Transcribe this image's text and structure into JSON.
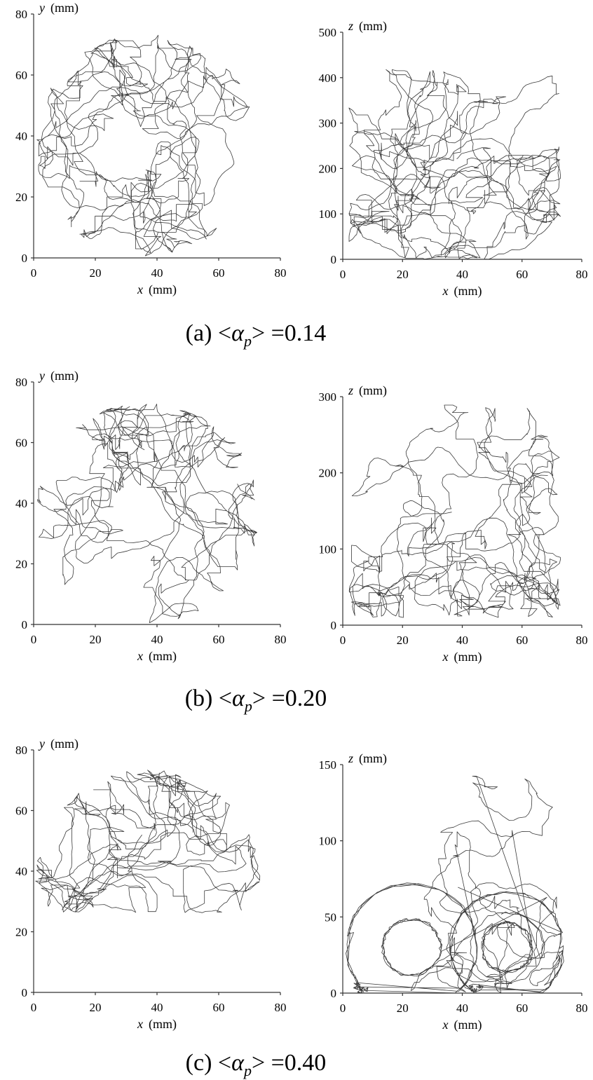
{
  "chart_data": [
    {
      "id": "a-xy",
      "type": "line",
      "xlabel": "x",
      "xunit": "(mm)",
      "ylabel": "y",
      "yunit": "(mm)",
      "xlim": [
        0,
        80
      ],
      "ylim": [
        0,
        80
      ],
      "xticks": [
        0,
        20,
        40,
        60,
        80
      ],
      "yticks": [
        0,
        20,
        40,
        60,
        80
      ],
      "trajectory": {
        "shape": "disc",
        "center": [
          36.5,
          37
        ],
        "radius": 36.5,
        "hole": [
          30,
          35,
          9
        ],
        "steps": 1300,
        "seed": 11
      }
    },
    {
      "id": "a-xz",
      "type": "line",
      "xlabel": "x",
      "xunit": "(mm)",
      "ylabel": "z",
      "yunit": "(mm)",
      "xlim": [
        0,
        80
      ],
      "ylim": [
        0,
        500
      ],
      "xticks": [
        0,
        20,
        40,
        60,
        80
      ],
      "yticks": [
        0,
        100,
        200,
        300,
        400,
        500
      ],
      "trajectory": {
        "shape": "rect",
        "x_range": [
          2,
          73
        ],
        "z_range": [
          0,
          420
        ],
        "steps": 1500,
        "seed": 12
      }
    },
    {
      "id": "b-xy",
      "type": "line",
      "xlabel": "x",
      "xunit": "(mm)",
      "ylabel": "y",
      "yunit": "(mm)",
      "xlim": [
        0,
        80
      ],
      "ylim": [
        0,
        80
      ],
      "xticks": [
        0,
        20,
        40,
        60,
        80
      ],
      "yticks": [
        0,
        20,
        40,
        60,
        80
      ],
      "trajectory": {
        "shape": "disc",
        "center": [
          37,
          37
        ],
        "radius": 36.5,
        "hole": [
          33,
          38,
          8
        ],
        "steps": 1200,
        "seed": 21
      }
    },
    {
      "id": "b-xz",
      "type": "line",
      "xlabel": "x",
      "xunit": "(mm)",
      "ylabel": "z",
      "yunit": "(mm)",
      "xlim": [
        0,
        80
      ],
      "ylim": [
        0,
        300
      ],
      "xticks": [
        0,
        20,
        40,
        60,
        80
      ],
      "yticks": [
        0,
        100,
        200,
        300
      ],
      "trajectory": {
        "shape": "rect",
        "x_range": [
          2,
          73
        ],
        "z_range": [
          10,
          290
        ],
        "steps": 1300,
        "seed": 22
      }
    },
    {
      "id": "c-xy",
      "type": "line",
      "xlabel": "x",
      "xunit": "(mm)",
      "ylabel": "y",
      "yunit": "(mm)",
      "xlim": [
        0,
        80
      ],
      "ylim": [
        0,
        80
      ],
      "xticks": [
        0,
        20,
        40,
        60,
        80
      ],
      "yticks": [
        0,
        20,
        40,
        60,
        80
      ],
      "trajectory": {
        "shape": "upper-disc",
        "center": [
          37,
          37
        ],
        "radius": 36.5,
        "y_min": 26,
        "stem": [
          22,
          32
        ],
        "steps": 1100,
        "seed": 31
      }
    },
    {
      "id": "c-xz",
      "type": "line",
      "xlabel": "x",
      "xunit": "(mm)",
      "ylabel": "z",
      "yunit": "(mm)",
      "xlim": [
        0,
        80
      ],
      "ylim": [
        0,
        150
      ],
      "xticks": [
        0,
        20,
        40,
        60,
        80
      ],
      "yticks": [
        0,
        50,
        100,
        150
      ],
      "trajectory": {
        "shape": "loops",
        "x_range": [
          1,
          74
        ],
        "z_range": [
          0,
          143
        ],
        "loop_centers": [
          [
            23,
            30
          ],
          [
            55,
            30
          ]
        ],
        "steps": 1100,
        "seed": 32
      }
    }
  ],
  "captions": [
    {
      "prefix": "(a) <",
      "var": "α",
      "sub": "p",
      "suffix": "> =0.14"
    },
    {
      "prefix": "(b) <",
      "var": "α",
      "sub": "p",
      "suffix": "> =0.20"
    },
    {
      "prefix": "(c) <",
      "var": "α",
      "sub": "p",
      "suffix": "> =0.40"
    }
  ]
}
